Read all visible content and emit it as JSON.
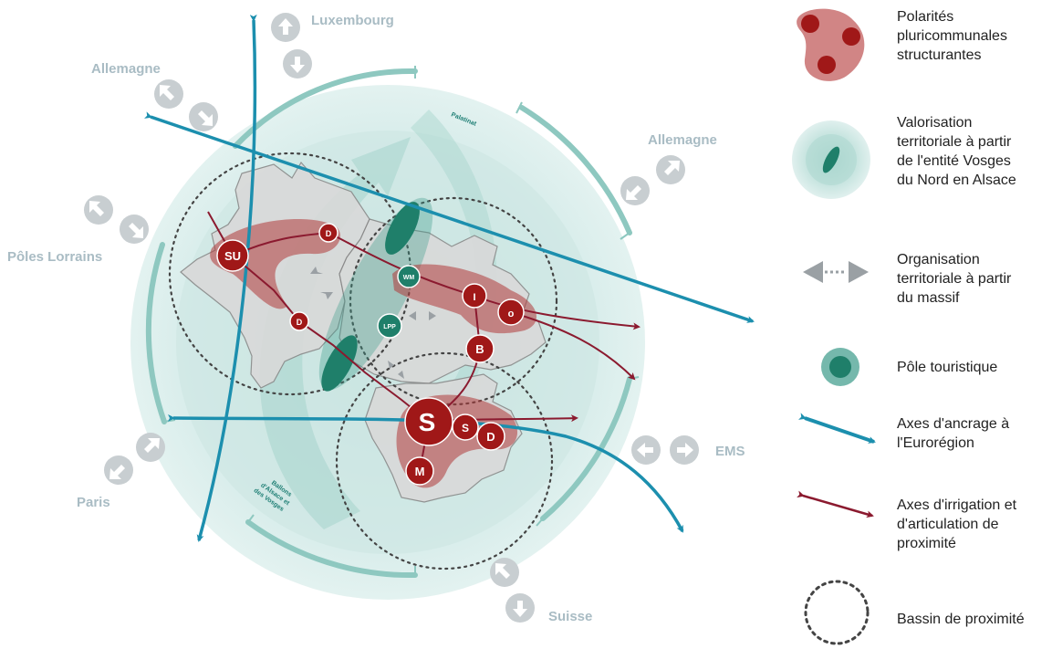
{
  "regions": {
    "luxembourg": "Luxembourg",
    "allemagne_left": "Allemagne",
    "allemagne_right": "Allemagne",
    "poles_lorrains": "Pôles Lorrains",
    "paris": "Paris",
    "ems": "EMS",
    "suisse": "Suisse"
  },
  "arc_labels": {
    "palatinat": "Palatinat",
    "ballons_1": "Ballons",
    "ballons_2": "d'Alsace et",
    "ballons_3": "des Vosges"
  },
  "nodes": {
    "su": "SU",
    "d_top": "D",
    "d_left": "D",
    "wm": "WM",
    "i": "I",
    "o": "o",
    "b": "B",
    "lpp": "LPP",
    "s_big": "S",
    "s_small": "S",
    "d_bottom": "D",
    "m": "M"
  },
  "legend": {
    "polarites_1": "Polarités",
    "polarites_2": "pluricommunales",
    "polarites_3": "structurantes",
    "valorisation_1": "Valorisation",
    "valorisation_2": "territoriale à partir",
    "valorisation_3": "de l'entité Vosges",
    "valorisation_4": "du Nord en Alsace",
    "organisation_1": "Organisation",
    "organisation_2": "territoriale à partir",
    "organisation_3": "du massif",
    "pole_touristique": "Pôle touristique",
    "ancrage_1": "Axes d'ancrage à",
    "ancrage_2": "l'Eurorégion",
    "irrigation_1": "Axes d'irrigation et",
    "irrigation_2": "d'articulation de",
    "irrigation_3": "proximité",
    "bassin": "Bassin de proximité"
  },
  "colors": {
    "teal_axis": "#1c8fae",
    "red_axis": "#8b1a2f",
    "polarity_node": "#a01818",
    "polarity_zone": "#c97070",
    "tourism_pole": "#1f7f6a",
    "light_teal": "#cfe7e4",
    "arc_teal": "#8ec8c0",
    "grey_arrow": "#c8ced1"
  }
}
